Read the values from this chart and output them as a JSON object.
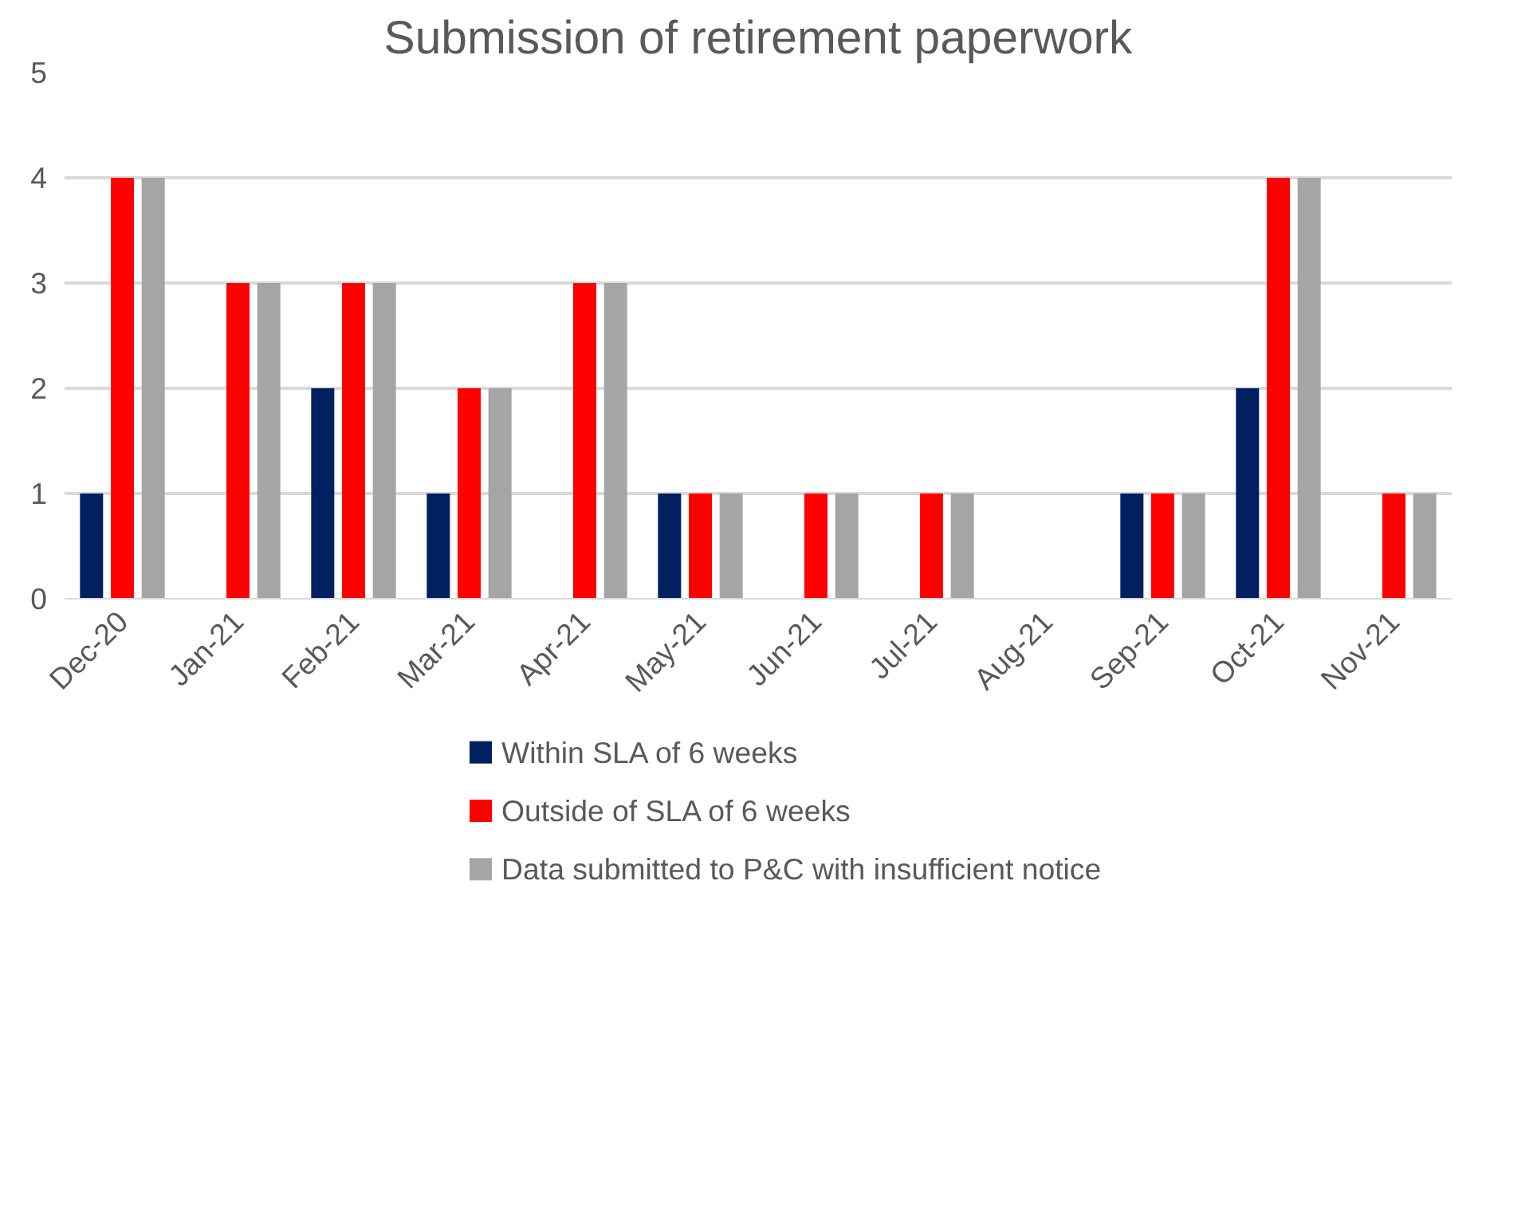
{
  "chart_data": {
    "type": "bar",
    "title": "Submission of retirement paperwork",
    "categories": [
      "Dec-20",
      "Jan-21",
      "Feb-21",
      "Mar-21",
      "Apr-21",
      "May-21",
      "Jun-21",
      "Jul-21",
      "Aug-21",
      "Sep-21",
      "Oct-21",
      "Nov-21"
    ],
    "series": [
      {
        "name": "Within SLA of 6 weeks",
        "color": "#002060",
        "values": [
          1,
          0,
          2,
          1,
          0,
          1,
          0,
          0,
          0,
          1,
          2,
          0
        ]
      },
      {
        "name": "Outside of SLA of 6 weeks",
        "color": "#ff0000",
        "values": [
          4,
          3,
          3,
          2,
          3,
          1,
          1,
          1,
          0,
          1,
          4,
          1
        ]
      },
      {
        "name": "Data submitted to P&C with insufficient notice",
        "color": "#a5a5a5",
        "values": [
          4,
          3,
          3,
          2,
          3,
          1,
          1,
          1,
          0,
          1,
          4,
          1
        ]
      }
    ],
    "ylim": [
      0,
      5
    ],
    "yticks": [
      0,
      1,
      2,
      3,
      4,
      5
    ],
    "grid": "y",
    "legend": "bottom"
  }
}
